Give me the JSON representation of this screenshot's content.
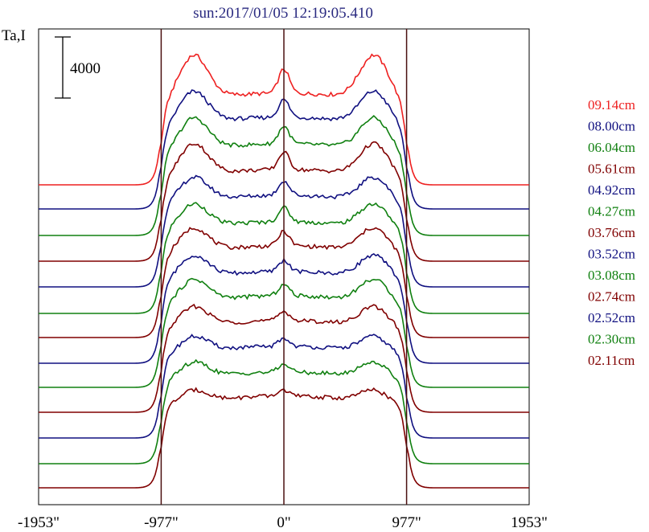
{
  "chart_data": {
    "type": "line",
    "title": "sun:2017/01/05 12:19:05.410",
    "ylabel": "Ta,I",
    "xlabel": "",
    "xlim": [
      -1953,
      1953
    ],
    "x_ticks": [
      {
        "value": -1953,
        "label": "-1953\""
      },
      {
        "value": -977,
        "label": "-977\""
      },
      {
        "value": 0,
        "label": "0\""
      },
      {
        "value": 977,
        "label": "977\""
      },
      {
        "value": 1953,
        "label": "1953\""
      }
    ],
    "limb_markers": [
      -977,
      0,
      977
    ],
    "scale_bar": {
      "value": 4000,
      "label": "4000"
    },
    "grid": false,
    "legend_position": "right",
    "series": [
      {
        "name": "09.14cm",
        "color": "#ee2020",
        "baseline": 230,
        "disk_height": 100,
        "limb_peak": 55,
        "center_bump": 30
      },
      {
        "name": "08.00cm",
        "color": "#101080",
        "baseline": 260,
        "disk_height": 100,
        "limb_peak": 40,
        "center_bump": 22
      },
      {
        "name": "06.04cm",
        "color": "#108010",
        "baseline": 293,
        "disk_height": 100,
        "limb_peak": 40,
        "center_bump": 22
      },
      {
        "name": "05.61cm",
        "color": "#800000",
        "baseline": 325,
        "disk_height": 100,
        "limb_peak": 40,
        "center_bump": 22
      },
      {
        "name": "04.92cm",
        "color": "#101080",
        "baseline": 357,
        "disk_height": 100,
        "limb_peak": 30,
        "center_bump": 18
      },
      {
        "name": "04.27cm",
        "color": "#108010",
        "baseline": 390,
        "disk_height": 100,
        "limb_peak": 30,
        "center_bump": 18
      },
      {
        "name": "03.76cm",
        "color": "#800000",
        "baseline": 420,
        "disk_height": 100,
        "limb_peak": 30,
        "center_bump": 18
      },
      {
        "name": "03.52cm",
        "color": "#101080",
        "baseline": 452,
        "disk_height": 100,
        "limb_peak": 28,
        "center_bump": 14
      },
      {
        "name": "03.08cm",
        "color": "#108010",
        "baseline": 482,
        "disk_height": 100,
        "limb_peak": 28,
        "center_bump": 14
      },
      {
        "name": "02.74cm",
        "color": "#800000",
        "baseline": 513,
        "disk_height": 100,
        "limb_peak": 25,
        "center_bump": 12
      },
      {
        "name": "02.52cm",
        "color": "#101080",
        "baseline": 545,
        "disk_height": 100,
        "limb_peak": 20,
        "center_bump": 10
      },
      {
        "name": "02.30cm",
        "color": "#108010",
        "baseline": 577,
        "disk_height": 100,
        "limb_peak": 20,
        "center_bump": 10
      },
      {
        "name": "02.11cm",
        "color": "#800000",
        "baseline": 607,
        "disk_height": 100,
        "limb_peak": 15,
        "center_bump": 8
      }
    ]
  }
}
